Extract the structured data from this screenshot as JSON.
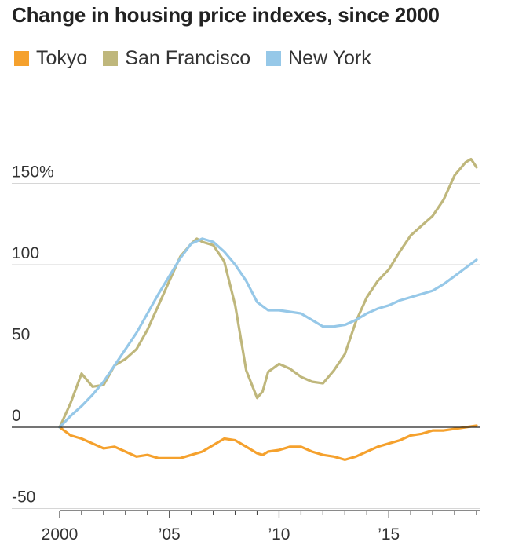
{
  "chart_data": {
    "type": "line",
    "title": "Change in housing price indexes, since 2000",
    "xlabel": "",
    "ylabel": "",
    "xlim": [
      2000,
      2019
    ],
    "ylim": [
      -50,
      170
    ],
    "x_ticks": [
      {
        "value": 2000,
        "label": "2000"
      },
      {
        "value": 2005,
        "label": "’05"
      },
      {
        "value": 2010,
        "label": "’10"
      },
      {
        "value": 2015,
        "label": "’15"
      }
    ],
    "y_ticks": [
      {
        "value": 150,
        "label": "150%"
      },
      {
        "value": 100,
        "label": "100"
      },
      {
        "value": 50,
        "label": "50"
      },
      {
        "value": 0,
        "label": "0"
      },
      {
        "value": -50,
        "label": "-50"
      }
    ],
    "grid": true,
    "legend_position": "top-left",
    "series": [
      {
        "name": "Tokyo",
        "color": "#f5a12d",
        "x": [
          2000,
          2000.5,
          2001,
          2001.5,
          2002,
          2002.5,
          2003,
          2003.5,
          2004,
          2004.5,
          2005,
          2005.5,
          2006,
          2006.5,
          2007,
          2007.5,
          2008,
          2008.5,
          2009,
          2009.25,
          2009.5,
          2010,
          2010.5,
          2011,
          2011.5,
          2012,
          2012.5,
          2013,
          2013.5,
          2014,
          2014.5,
          2015,
          2015.5,
          2016,
          2016.5,
          2017,
          2017.5,
          2018,
          2018.5,
          2019
        ],
        "values": [
          0,
          -5,
          -7,
          -10,
          -13,
          -12,
          -15,
          -18,
          -17,
          -19,
          -19,
          -19,
          -17,
          -15,
          -11,
          -7,
          -8,
          -12,
          -16,
          -17,
          -15,
          -14,
          -12,
          -12,
          -15,
          -17,
          -18,
          -20,
          -18,
          -15,
          -12,
          -10,
          -8,
          -5,
          -4,
          -2,
          -2,
          -1,
          0,
          1
        ]
      },
      {
        "name": "San Francisco",
        "color": "#bfb77c",
        "x": [
          2000,
          2000.5,
          2001,
          2001.5,
          2002,
          2002.5,
          2003,
          2003.5,
          2004,
          2004.5,
          2005,
          2005.5,
          2006,
          2006.25,
          2006.5,
          2007,
          2007.5,
          2008,
          2008.5,
          2009,
          2009.25,
          2009.5,
          2010,
          2010.5,
          2011,
          2011.5,
          2012,
          2012.5,
          2013,
          2013.5,
          2014,
          2014.5,
          2015,
          2015.5,
          2016,
          2016.5,
          2017,
          2017.5,
          2018,
          2018.5,
          2018.75,
          2019
        ],
        "values": [
          0,
          15,
          33,
          25,
          26,
          38,
          42,
          48,
          60,
          75,
          90,
          105,
          113,
          116,
          114,
          112,
          102,
          75,
          35,
          18,
          22,
          34,
          39,
          36,
          31,
          28,
          27,
          35,
          45,
          65,
          80,
          90,
          97,
          108,
          118,
          124,
          130,
          140,
          155,
          163,
          165,
          160
        ]
      },
      {
        "name": "New York",
        "color": "#96c8e8",
        "x": [
          2000,
          2000.5,
          2001,
          2001.5,
          2002,
          2002.5,
          2003,
          2003.5,
          2004,
          2004.5,
          2005,
          2005.5,
          2006,
          2006.5,
          2007,
          2007.5,
          2008,
          2008.5,
          2009,
          2009.5,
          2010,
          2010.5,
          2011,
          2011.5,
          2012,
          2012.5,
          2013,
          2013.5,
          2014,
          2014.5,
          2015,
          2015.5,
          2016,
          2016.5,
          2017,
          2017.5,
          2018,
          2018.5,
          2019
        ],
        "values": [
          0,
          7,
          13,
          20,
          28,
          38,
          48,
          58,
          70,
          82,
          93,
          104,
          113,
          116,
          114,
          108,
          100,
          90,
          77,
          72,
          72,
          71,
          70,
          66,
          62,
          62,
          63,
          66,
          70,
          73,
          75,
          78,
          80,
          82,
          84,
          88,
          93,
          98,
          103
        ]
      }
    ]
  }
}
